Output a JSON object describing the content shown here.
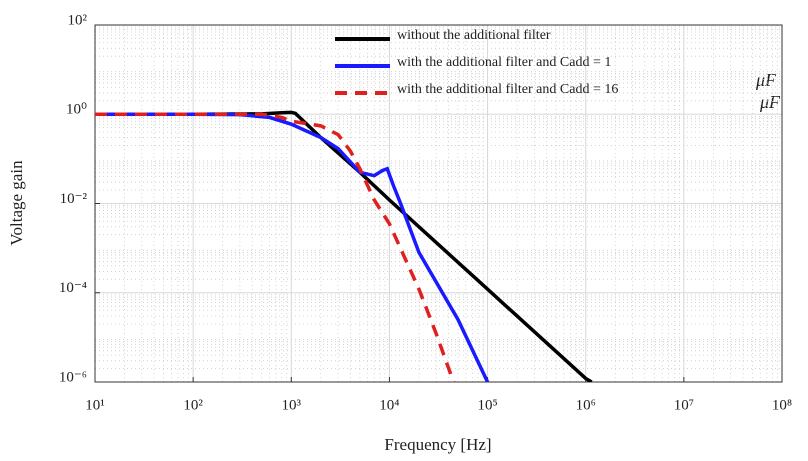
{
  "chart_data": {
    "type": "line",
    "xlabel": "Frequency [Hz]",
    "ylabel": "Voltage gain",
    "xscale": "log",
    "yscale": "log",
    "grid": true,
    "legend": "upper center",
    "xlim": [
      10,
      100000000
    ],
    "ylim": [
      1e-06,
      100
    ],
    "xticks": [
      {
        "value": 10,
        "label": "10¹"
      },
      {
        "value": 100,
        "label": "10²"
      },
      {
        "value": 1000,
        "label": "10³"
      },
      {
        "value": 10000,
        "label": "10⁴"
      },
      {
        "value": 100000,
        "label": "10⁵"
      },
      {
        "value": 1000000,
        "label": "10⁶"
      },
      {
        "value": 10000000,
        "label": "10⁷"
      },
      {
        "value": 100000000,
        "label": "10⁸"
      }
    ],
    "yticks": [
      {
        "value": 1e-06,
        "label": "10⁻⁶"
      },
      {
        "value": 0.0001,
        "label": "10⁻⁴"
      },
      {
        "value": 0.01,
        "label": "10⁻²"
      },
      {
        "value": 1,
        "label": "10⁰"
      },
      {
        "value": 100,
        "label": "10²"
      }
    ],
    "annotations": [
      "μF",
      "μF"
    ],
    "series": [
      {
        "name": "without the additional filter",
        "color": "#000000",
        "style": "solid",
        "x": [
          10,
          100,
          500,
          800,
          1000,
          1100,
          2000,
          5000,
          10000,
          100000,
          1000000,
          1150000
        ],
        "values": [
          1,
          1,
          1.02,
          1.08,
          1.1,
          1.05,
          0.3,
          0.05,
          0.012,
          0.00012,
          1.2e-06,
          1e-06
        ]
      },
      {
        "name": "with the additional filter and Cadd = 1",
        "color": "#1a1aff",
        "style": "solid",
        "x": [
          10,
          100,
          300,
          600,
          1000,
          2000,
          3000,
          5000,
          7000,
          8500,
          9500,
          11000,
          13000,
          20000,
          50000,
          100000
        ],
        "values": [
          1,
          1,
          0.98,
          0.85,
          0.6,
          0.3,
          0.17,
          0.05,
          0.042,
          0.055,
          0.06,
          0.025,
          0.01,
          0.0008,
          2.5e-05,
          1e-06
        ]
      },
      {
        "name": "with the additional filter and Cadd = 16",
        "color": "#e0201f",
        "style": "dashed",
        "x": [
          10,
          100,
          500,
          800,
          1000,
          2000,
          3000,
          4000,
          5000,
          7000,
          10000,
          20000,
          30000,
          45000
        ],
        "values": [
          1,
          1,
          1,
          0.85,
          0.7,
          0.55,
          0.35,
          0.15,
          0.06,
          0.012,
          0.0035,
          0.00012,
          1.2e-05,
          1e-06
        ]
      }
    ]
  }
}
